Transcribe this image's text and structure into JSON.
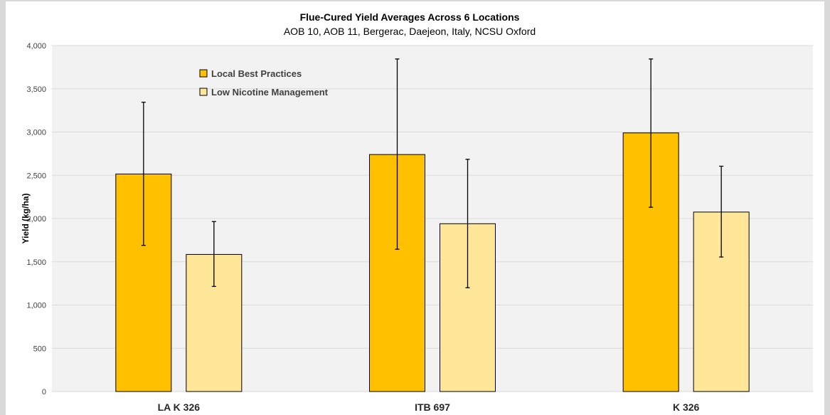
{
  "chart_data": {
    "type": "bar",
    "title": "Flue-Cured Yield Averages Across 6 Locations",
    "subtitle": "AOB 10, AOB 11, Bergerac, Daejeon, Italy, NCSU Oxford",
    "xlabel": "",
    "ylabel": "Yield (kg/ha)",
    "ylim": [
      0,
      4000
    ],
    "yticks": [
      0,
      500,
      1000,
      1500,
      2000,
      2500,
      3000,
      3500,
      4000
    ],
    "ytick_labels": [
      "0",
      "500",
      "1,000",
      "1,500",
      "2,000",
      "2,500",
      "3,000",
      "3,500",
      "4,000"
    ],
    "categories": [
      "LA K 326",
      "ITB 697",
      "K 326"
    ],
    "grid": true,
    "legend_position": "top-left",
    "series": [
      {
        "name": "Local Best Practices",
        "color": "#ffc000",
        "values": [
          2515,
          2740,
          2990
        ],
        "error_low": [
          1690,
          1645,
          2130
        ],
        "error_high": [
          3345,
          3845,
          3845
        ]
      },
      {
        "name": "Low Nicotine Management",
        "color": "#ffe699",
        "values": [
          1585,
          1940,
          2075
        ],
        "error_low": [
          1215,
          1200,
          1555
        ],
        "error_high": [
          1965,
          2685,
          2605
        ]
      }
    ]
  },
  "colors": {
    "plot_background": "#f2f2f2",
    "gridline": "#d9d9d9",
    "bar_border": "#000000",
    "error_bar": "#000000"
  }
}
